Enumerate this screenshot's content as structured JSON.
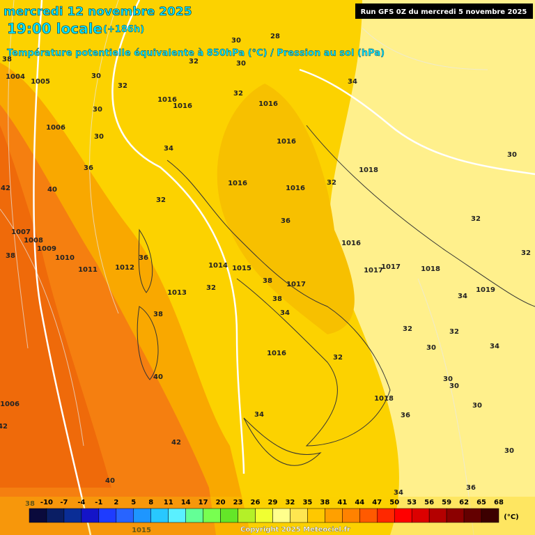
{
  "header": {
    "date": "mercredi 12 novembre 2025",
    "time": "19:00 locale",
    "lead": "(+186h)",
    "subtitle": "Température potentielle équivalente à 850hPa (°C) / Pression au sol (hPa)",
    "run": "Run GFS 0Z du mercredi 5 novembre 2025"
  },
  "map_labels": [
    "1004",
    "1005",
    "30",
    "32",
    "1006",
    "30",
    "30",
    "1016",
    "1016",
    "32",
    "30",
    "28",
    "30",
    "32",
    "34",
    "1016",
    "34",
    "36",
    "40",
    "32",
    "1016",
    "1016",
    "1016",
    "32",
    "1018",
    "30",
    "1007",
    "1008",
    "1009",
    "1010",
    "1011",
    "1012",
    "36",
    "38",
    "36",
    "1016",
    "32",
    "32",
    "1014",
    "1015",
    "38",
    "1017",
    "1017",
    "1017",
    "1018",
    "1019",
    "1013",
    "32",
    "38",
    "34",
    "38",
    "34",
    "32",
    "32",
    "30",
    "34",
    "1016",
    "32",
    "40",
    "30",
    "30",
    "1006",
    "1018",
    "36",
    "34",
    "30",
    "42",
    "42",
    "30",
    "40",
    "36",
    "34",
    "38",
    "1015",
    "42",
    "38"
  ],
  "legend": {
    "labels": [
      "-10",
      "-7",
      "-4",
      "-1",
      "2",
      "5",
      "8",
      "11",
      "14",
      "17",
      "20",
      "23",
      "26",
      "29",
      "32",
      "35",
      "38",
      "41",
      "44",
      "47",
      "50",
      "53",
      "56",
      "59",
      "62",
      "65",
      "68"
    ],
    "colors": [
      "#0a0a3c",
      "#0a1e64",
      "#0a2d96",
      "#1414c8",
      "#1e3cff",
      "#2864ff",
      "#1e96ff",
      "#28c8ff",
      "#5af0ff",
      "#64ff96",
      "#78ff50",
      "#64e628",
      "#b4f028",
      "#f0ff32",
      "#ffff8c",
      "#ffe650",
      "#ffc800",
      "#ffa000",
      "#ff8200",
      "#ff5a00",
      "#ff2800",
      "#ff0000",
      "#dc0000",
      "#b40000",
      "#8c0000",
      "#640000",
      "#3c0000"
    ],
    "unit": "(°C)"
  },
  "footer": {
    "copyright": "Copyright 2025 Meteociel.fr"
  }
}
